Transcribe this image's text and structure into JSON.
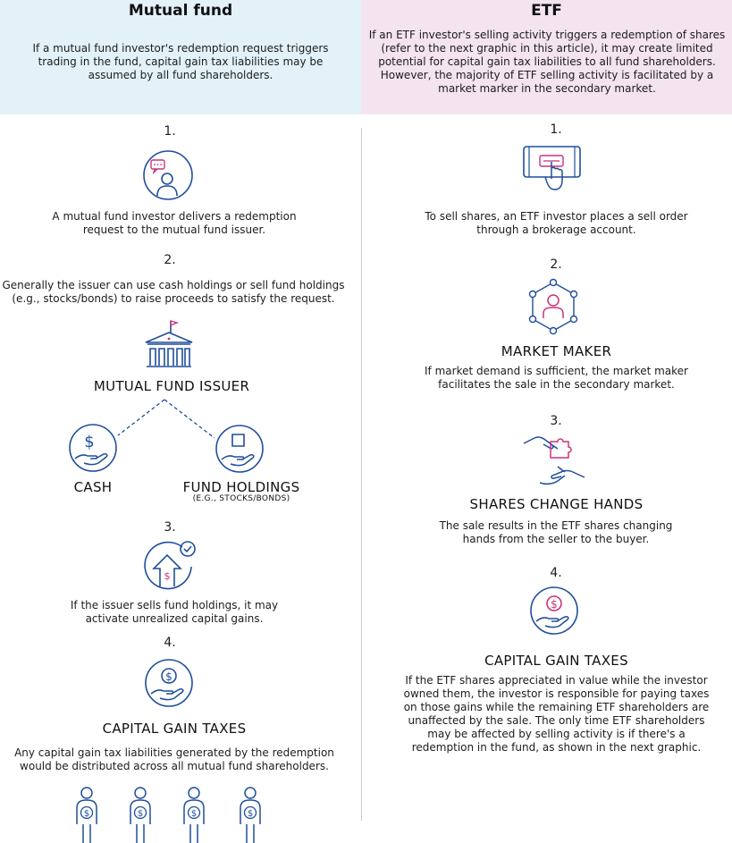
{
  "mutual_fund": {
    "title": "Mutual fund",
    "intro": "If a mutual fund investor's redemption request triggers trading in the fund, capital gain tax liabilities may be assumed by all fund shareholders.",
    "steps": [
      {
        "number": "1.",
        "text": "A mutual fund investor delivers a redemption request to the mutual fund issuer."
      },
      {
        "number": "2.",
        "text": "Generally the issuer can use cash holdings or sell fund holdings (e.g., stocks/bonds) to raise proceeds to satisfy the request."
      },
      {
        "number": "3.",
        "text": "If the issuer sells fund holdings, it may activate unrealized capital gains."
      },
      {
        "number": "4.",
        "text": "Any capital gain tax liabilities generated by the redemption would be distributed across all mutual fund shareholders."
      }
    ],
    "issuer_label": "MUTUAL FUND ISSUER",
    "cash_label": "CASH",
    "holdings_label": "FUND HOLDINGS",
    "holdings_sublabel": "(E.G., STOCKS/BONDS)",
    "capital_gain_label": "CAPITAL GAIN TAXES"
  },
  "etf": {
    "title": "ETF",
    "intro": "If an ETF investor's selling activity triggers a redemption of shares (refer to the next graphic in this article), it may create limited potential for capital gain tax liabilities to all fund shareholders. However, the majority of ETF selling activity is facilitated by a market marker in the secondary market.",
    "steps": [
      {
        "number": "1.",
        "heading": "",
        "text": "To sell shares, an ETF investor places a sell order through a brokerage account."
      },
      {
        "number": "2.",
        "heading": "MARKET MAKER",
        "text": "If market demand is sufficient, the market maker facilitates the sale in the secondary market."
      },
      {
        "number": "3.",
        "heading": "SHARES CHANGE HANDS",
        "text": "The sale results in the ETF shares changing hands from the seller to the buyer."
      },
      {
        "number": "4.",
        "heading": "CAPITAL GAIN TAXES",
        "text": "If the ETF shares appreciated in value while the investor owned them, the investor is responsible for paying taxes on those gains while the remaining ETF shareholders are unaffected by the sale. The only time ETF shareholders may be affected by selling activity is if there's a redemption in the fund, as shown in the next graphic."
      }
    ]
  },
  "icons": {
    "investor": "investor-chat-icon",
    "building": "fund-issuer-building-icon",
    "cash": "cash-in-hand-icon",
    "holdings": "holdings-in-hand-icon",
    "gains": "capital-gains-arrow-icon",
    "taxes": "tax-coin-hand-icon",
    "shareholders": "shareholder-person-icon",
    "tablet": "tablet-tap-icon",
    "market_maker": "market-maker-network-icon",
    "handshake": "puzzle-handoff-icon"
  },
  "colors": {
    "mutual_fund_header": "#e3f2f9",
    "etf_header": "#f3e4ef",
    "icon_blue": "#1f4e9c",
    "icon_pink": "#c8337a"
  }
}
